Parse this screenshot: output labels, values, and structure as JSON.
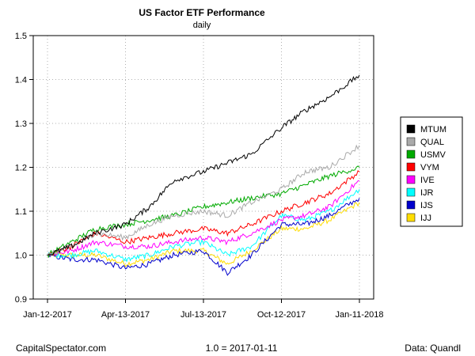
{
  "chart_data": {
    "type": "line",
    "title": "US Factor ETF Performance",
    "subtitle": "daily",
    "xlabel": "",
    "ylabel": "",
    "ylim": [
      0.9,
      1.5
    ],
    "yticks": [
      "0.9",
      "1.0",
      "1.1",
      "1.2",
      "1.3",
      "1.4",
      "1.5"
    ],
    "xlim": [
      "2017-01-12",
      "2018-01-11"
    ],
    "xticks": [
      {
        "date": "2017-01-12",
        "label": "Jan-12-2017"
      },
      {
        "date": "2017-04-13",
        "label": "Apr-13-2017"
      },
      {
        "date": "2017-07-13",
        "label": "Jul-13-2017"
      },
      {
        "date": "2017-10-12",
        "label": "Oct-12-2017"
      },
      {
        "date": "2018-01-11",
        "label": "Jan-11-2018"
      }
    ],
    "grid": true,
    "legend_position": "right",
    "x": [
      "2017-01-12",
      "2017-02-09",
      "2017-03-09",
      "2017-04-13",
      "2017-05-11",
      "2017-06-08",
      "2017-07-13",
      "2017-08-10",
      "2017-09-07",
      "2017-10-12",
      "2017-11-09",
      "2017-12-07",
      "2018-01-11"
    ],
    "series": [
      {
        "name": "MTUM",
        "color": "#000000",
        "values": [
          1.0,
          1.02,
          1.05,
          1.07,
          1.11,
          1.17,
          1.19,
          1.21,
          1.23,
          1.29,
          1.33,
          1.36,
          1.41
        ]
      },
      {
        "name": "QUAL",
        "color": "#aaaaaa",
        "values": [
          1.0,
          1.02,
          1.05,
          1.04,
          1.07,
          1.09,
          1.1,
          1.09,
          1.12,
          1.15,
          1.19,
          1.2,
          1.25
        ]
      },
      {
        "name": "USMV",
        "color": "#00aa00",
        "values": [
          1.0,
          1.03,
          1.06,
          1.07,
          1.08,
          1.09,
          1.11,
          1.12,
          1.13,
          1.14,
          1.16,
          1.18,
          1.2
        ]
      },
      {
        "name": "VYM",
        "color": "#ff0000",
        "values": [
          1.0,
          1.02,
          1.05,
          1.03,
          1.04,
          1.05,
          1.06,
          1.05,
          1.07,
          1.1,
          1.12,
          1.14,
          1.19
        ]
      },
      {
        "name": "IVE",
        "color": "#ff00ff",
        "values": [
          1.0,
          1.01,
          1.03,
          1.02,
          1.02,
          1.03,
          1.04,
          1.03,
          1.05,
          1.08,
          1.09,
          1.11,
          1.17
        ]
      },
      {
        "name": "IJR",
        "color": "#00ffff",
        "values": [
          1.0,
          1.0,
          1.01,
          0.99,
          1.0,
          1.02,
          1.03,
          1.0,
          1.02,
          1.09,
          1.08,
          1.1,
          1.15
        ]
      },
      {
        "name": "IJS",
        "color": "#0000cc",
        "values": [
          1.0,
          0.99,
          0.99,
          0.97,
          0.98,
          1.0,
          1.01,
          0.96,
          1.0,
          1.07,
          1.07,
          1.09,
          1.13
        ]
      },
      {
        "name": "IJJ",
        "color": "#ffdd00",
        "values": [
          1.0,
          1.0,
          1.0,
          0.98,
          0.99,
          1.01,
          1.01,
          0.98,
          1.01,
          1.06,
          1.06,
          1.08,
          1.12
        ]
      }
    ]
  },
  "footer": {
    "source": "CapitalSpectator.com",
    "base": "1.0 = 2017-01-11",
    "data_credit": "Data: Quandl"
  }
}
